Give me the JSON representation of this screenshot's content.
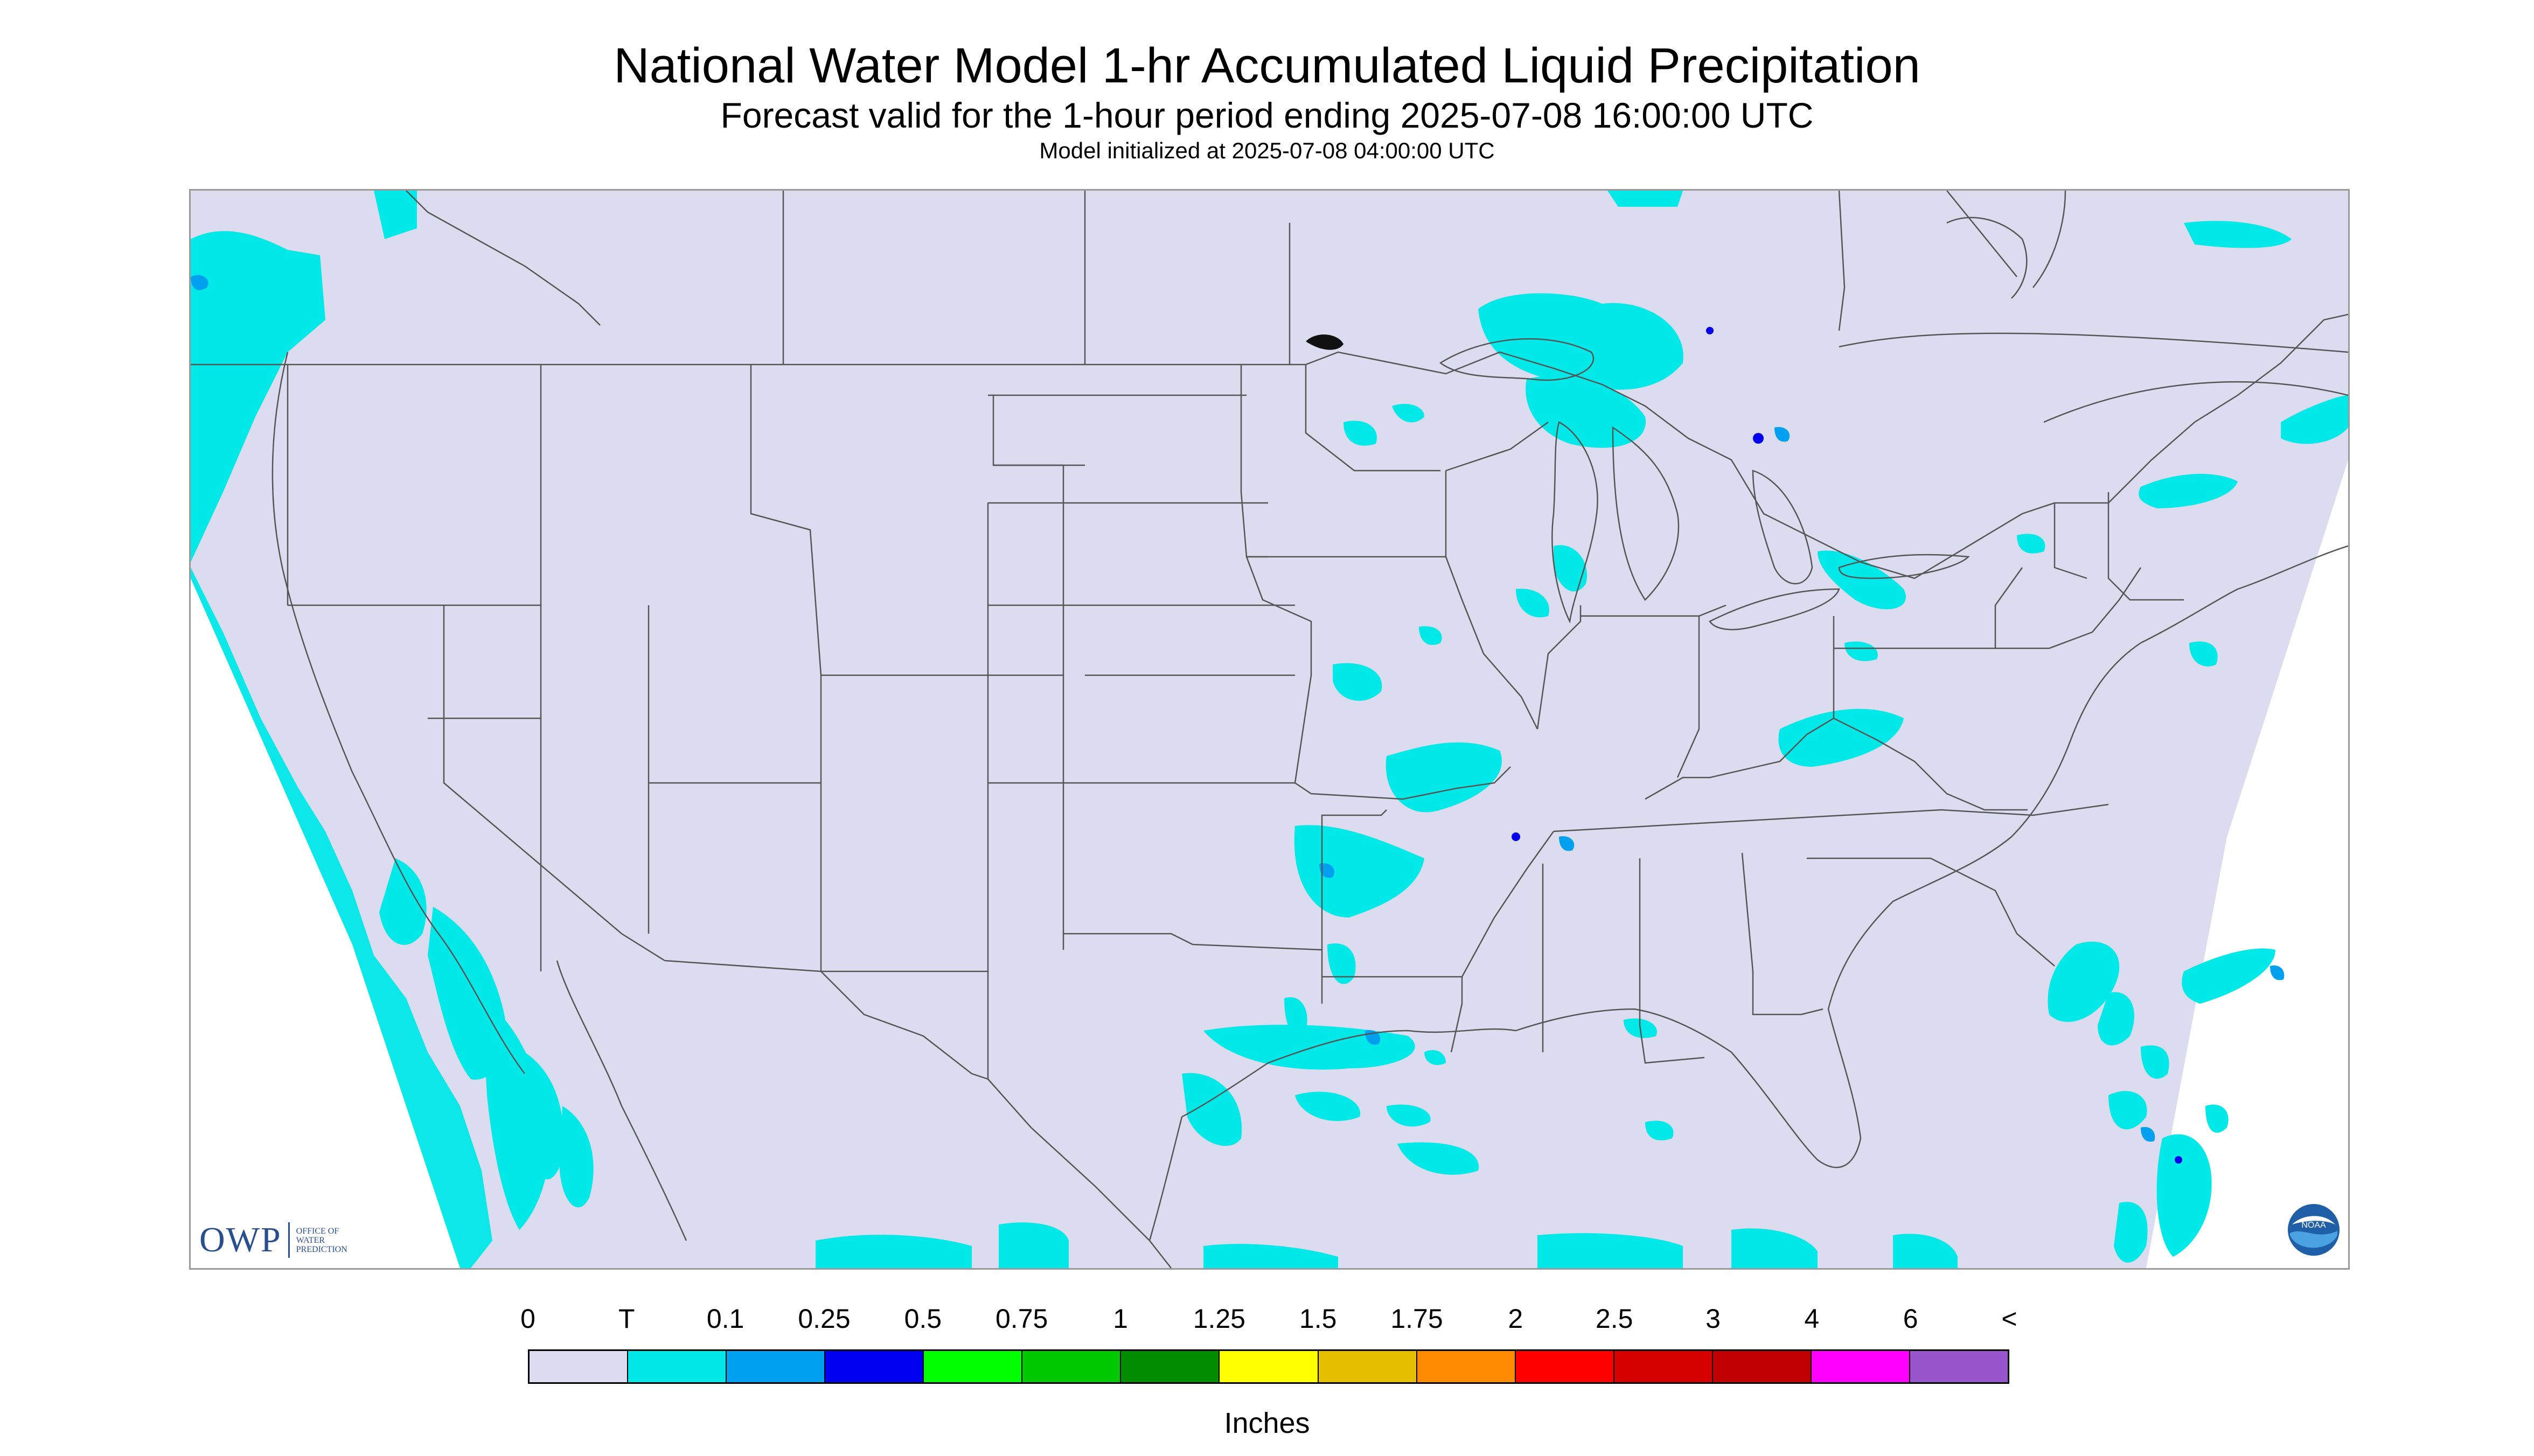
{
  "header": {
    "title": "National Water Model 1-hr Accumulated Liquid Precipitation",
    "subtitle": "Forecast valid for the 1-hour period ending 2025-07-08 16:00:00 UTC",
    "init": "Model initialized at 2025-07-08 04:00:00 UTC"
  },
  "logos": {
    "owp_letters": "OWP",
    "owp_line1": "OFFICE OF",
    "owp_line2": "WATER",
    "owp_line3": "PREDICTION",
    "noaa": "NOAA"
  },
  "legend": {
    "labels": [
      "0",
      "T",
      "0.1",
      "0.25",
      "0.5",
      "0.75",
      "1",
      "1.25",
      "1.5",
      "1.75",
      "2",
      "2.5",
      "3",
      "4",
      "6",
      "<"
    ],
    "colors": [
      "#dcdcf0",
      "#00e8e8",
      "#00a0f0",
      "#0000f0",
      "#00ff00",
      "#00c800",
      "#008c00",
      "#ffff00",
      "#e6be00",
      "#ff8c00",
      "#ff0000",
      "#d70000",
      "#c00000",
      "#ff00ff",
      "#9955cc"
    ],
    "units": "Inches"
  },
  "map": {
    "background_color": "#dcdcf0",
    "outside_domain_color": "#ffffff",
    "border_color": "#555555"
  }
}
